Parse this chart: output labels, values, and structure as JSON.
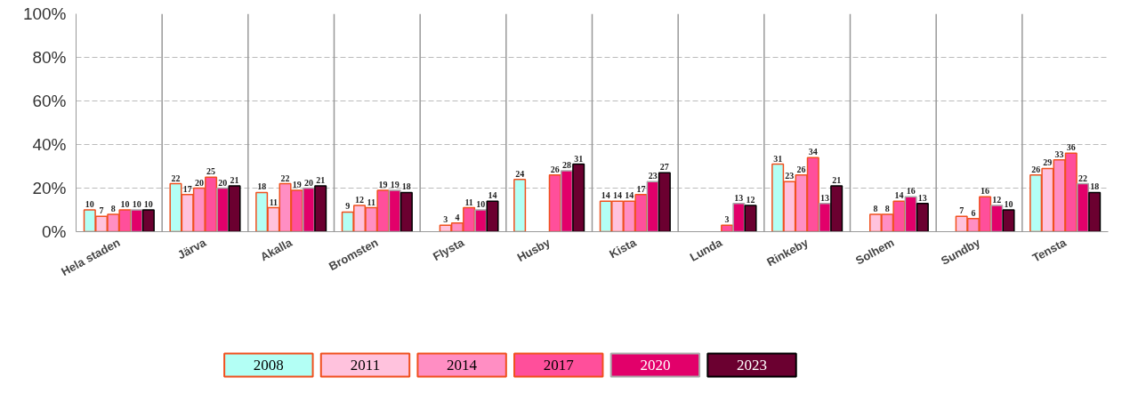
{
  "chart_data": {
    "type": "bar",
    "categories": [
      "Hela staden",
      "Järva",
      "Akalla",
      "Bromsten",
      "Flysta",
      "Husby",
      "Kista",
      "Lunda",
      "Rinkeby",
      "Solhem",
      "Sundby",
      "Tensta"
    ],
    "series": [
      {
        "name": "2008",
        "color": "#b3fff5",
        "values": [
          10,
          22,
          18,
          9,
          null,
          24,
          14,
          null,
          31,
          null,
          null,
          26
        ]
      },
      {
        "name": "2011",
        "color": "#ffc2dd",
        "values": [
          7,
          17,
          11,
          12,
          3,
          null,
          14,
          null,
          23,
          8,
          7,
          29
        ]
      },
      {
        "name": "2014",
        "color": "#ff8ec3",
        "values": [
          8,
          20,
          22,
          11,
          4,
          null,
          14,
          null,
          26,
          8,
          6,
          33
        ]
      },
      {
        "name": "2017",
        "color": "#ff4f9b",
        "values": [
          10,
          25,
          19,
          19,
          11,
          26,
          17,
          3,
          34,
          14,
          16,
          36
        ]
      },
      {
        "name": "2020",
        "color": "#e2006a",
        "values": [
          10,
          20,
          20,
          19,
          10,
          28,
          23,
          13,
          13,
          16,
          12,
          22
        ]
      },
      {
        "name": "2023",
        "color": "#6b0030",
        "values": [
          10,
          21,
          21,
          18,
          14,
          31,
          27,
          12,
          21,
          13,
          10,
          18
        ]
      }
    ],
    "ylim": [
      0,
      100
    ],
    "yticks": [
      {
        "value": 0,
        "label": "0%"
      },
      {
        "value": 20,
        "label": "20%"
      },
      {
        "value": 40,
        "label": "40%"
      },
      {
        "value": 60,
        "label": "60%"
      },
      {
        "value": 80,
        "label": "80%"
      },
      {
        "value": 100,
        "label": "100%"
      }
    ],
    "grid": "y",
    "legend": "bottom",
    "data_labels": true
  }
}
